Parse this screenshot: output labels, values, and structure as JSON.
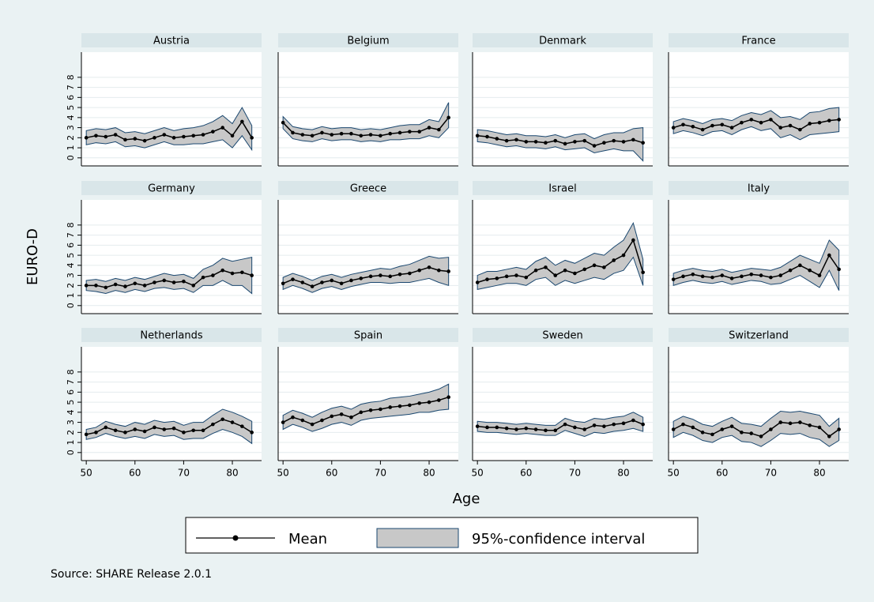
{
  "chart_data": {
    "type": "line",
    "y_label": "EURO-D",
    "x_label": "Age",
    "source": "Source: SHARE Release 2.0.1",
    "x": [
      50,
      52,
      54,
      56,
      58,
      60,
      62,
      64,
      66,
      68,
      70,
      72,
      74,
      76,
      78,
      80,
      82,
      84
    ],
    "xlim": [
      49,
      86
    ],
    "xticks": [
      50,
      60,
      70,
      80
    ],
    "ylim": [
      -0.8,
      10.5
    ],
    "yticks": [
      0,
      1,
      2,
      3,
      4,
      5,
      6,
      7,
      8
    ],
    "grid": true,
    "series": [
      {
        "name": "Mean",
        "color": "#000000"
      },
      {
        "name": "95%-confidence interval",
        "color": "#c8c8c8",
        "edge_color": "#1a476f"
      }
    ],
    "panels": [
      {
        "title": "Austria",
        "mean": [
          2,
          2.2,
          2.1,
          2.3,
          1.8,
          1.9,
          1.7,
          2.0,
          2.3,
          2.0,
          2.1,
          2.2,
          2.3,
          2.6,
          3.0,
          2.2,
          3.6,
          2.0
        ],
        "lower": [
          1.3,
          1.5,
          1.4,
          1.6,
          1.1,
          1.2,
          1.0,
          1.3,
          1.6,
          1.3,
          1.3,
          1.4,
          1.4,
          1.6,
          1.8,
          1.0,
          2.2,
          0.8
        ],
        "upper": [
          2.7,
          2.9,
          2.8,
          3.0,
          2.5,
          2.6,
          2.4,
          2.7,
          3.0,
          2.7,
          2.9,
          3.0,
          3.2,
          3.6,
          4.2,
          3.4,
          5.0,
          3.2
        ]
      },
      {
        "title": "Belgium",
        "mean": [
          3.5,
          2.5,
          2.3,
          2.2,
          2.5,
          2.3,
          2.4,
          2.4,
          2.2,
          2.3,
          2.2,
          2.4,
          2.5,
          2.6,
          2.6,
          3.0,
          2.8,
          4.0
        ],
        "lower": [
          2.9,
          1.9,
          1.7,
          1.6,
          1.9,
          1.7,
          1.8,
          1.8,
          1.6,
          1.7,
          1.6,
          1.8,
          1.8,
          1.9,
          1.9,
          2.2,
          2.0,
          3.0
        ],
        "upper": [
          4.1,
          3.1,
          2.9,
          2.8,
          3.1,
          2.9,
          3.0,
          3.0,
          2.8,
          2.9,
          2.8,
          3.0,
          3.2,
          3.3,
          3.3,
          3.8,
          3.6,
          5.5
        ]
      },
      {
        "title": "Denmark",
        "mean": [
          2.2,
          2.1,
          1.9,
          1.7,
          1.8,
          1.6,
          1.6,
          1.5,
          1.7,
          1.4,
          1.6,
          1.7,
          1.2,
          1.5,
          1.7,
          1.6,
          1.8,
          1.5
        ],
        "lower": [
          1.6,
          1.5,
          1.3,
          1.1,
          1.2,
          1.0,
          1.0,
          0.9,
          1.1,
          0.8,
          0.9,
          1.0,
          0.5,
          0.7,
          0.9,
          0.7,
          0.7,
          -0.3
        ],
        "upper": [
          2.8,
          2.7,
          2.5,
          2.3,
          2.4,
          2.2,
          2.2,
          2.1,
          2.3,
          2.0,
          2.3,
          2.4,
          1.9,
          2.3,
          2.5,
          2.5,
          2.9,
          3.0
        ]
      },
      {
        "title": "France",
        "mean": [
          3.0,
          3.3,
          3.1,
          2.8,
          3.2,
          3.3,
          3.0,
          3.5,
          3.8,
          3.5,
          3.8,
          3.0,
          3.2,
          2.8,
          3.4,
          3.5,
          3.7,
          3.8
        ],
        "lower": [
          2.4,
          2.7,
          2.5,
          2.2,
          2.6,
          2.7,
          2.3,
          2.8,
          3.1,
          2.7,
          2.9,
          2.0,
          2.3,
          1.8,
          2.3,
          2.4,
          2.5,
          2.6
        ],
        "upper": [
          3.6,
          3.9,
          3.7,
          3.4,
          3.8,
          3.9,
          3.7,
          4.2,
          4.5,
          4.3,
          4.7,
          4.0,
          4.1,
          3.8,
          4.5,
          4.6,
          4.9,
          5.0
        ]
      },
      {
        "title": "Germany",
        "mean": [
          2.0,
          2.0,
          1.8,
          2.1,
          1.9,
          2.2,
          2.0,
          2.3,
          2.5,
          2.3,
          2.4,
          2.0,
          2.8,
          3.0,
          3.5,
          3.2,
          3.3,
          3.0
        ],
        "lower": [
          1.5,
          1.4,
          1.2,
          1.5,
          1.3,
          1.6,
          1.4,
          1.7,
          1.8,
          1.6,
          1.7,
          1.3,
          2.0,
          2.0,
          2.5,
          2.0,
          2.0,
          1.2
        ],
        "upper": [
          2.5,
          2.6,
          2.4,
          2.7,
          2.5,
          2.8,
          2.6,
          2.9,
          3.2,
          3.0,
          3.1,
          2.7,
          3.6,
          4.0,
          4.7,
          4.4,
          4.6,
          4.8
        ]
      },
      {
        "title": "Greece",
        "mean": [
          2.2,
          2.6,
          2.3,
          1.9,
          2.3,
          2.5,
          2.2,
          2.5,
          2.7,
          2.9,
          3.0,
          2.9,
          3.1,
          3.2,
          3.5,
          3.8,
          3.5,
          3.4
        ],
        "lower": [
          1.6,
          2.0,
          1.7,
          1.3,
          1.7,
          1.9,
          1.6,
          1.9,
          2.1,
          2.3,
          2.3,
          2.2,
          2.3,
          2.3,
          2.5,
          2.7,
          2.3,
          2.0
        ],
        "upper": [
          2.8,
          3.2,
          2.9,
          2.5,
          2.9,
          3.1,
          2.8,
          3.1,
          3.3,
          3.5,
          3.7,
          3.6,
          3.9,
          4.1,
          4.5,
          4.9,
          4.7,
          4.8
        ]
      },
      {
        "title": "Israel",
        "mean": [
          2.3,
          2.6,
          2.7,
          2.9,
          3.0,
          2.8,
          3.5,
          3.8,
          3.0,
          3.5,
          3.2,
          3.6,
          4.0,
          3.8,
          4.5,
          5.0,
          6.5,
          3.3
        ],
        "lower": [
          1.6,
          1.8,
          2.0,
          2.2,
          2.2,
          2.0,
          2.6,
          2.8,
          2.0,
          2.5,
          2.2,
          2.5,
          2.8,
          2.6,
          3.2,
          3.5,
          4.8,
          2.0
        ],
        "upper": [
          3.0,
          3.4,
          3.4,
          3.6,
          3.8,
          3.6,
          4.4,
          4.8,
          4.0,
          4.5,
          4.2,
          4.7,
          5.2,
          5.0,
          5.8,
          6.5,
          8.2,
          4.6
        ]
      },
      {
        "title": "Italy",
        "mean": [
          2.6,
          2.9,
          3.1,
          2.9,
          2.8,
          3.0,
          2.7,
          2.9,
          3.1,
          3.0,
          2.8,
          3.0,
          3.5,
          4.0,
          3.5,
          3.0,
          5.0,
          3.6
        ],
        "lower": [
          2.0,
          2.3,
          2.5,
          2.3,
          2.2,
          2.4,
          2.1,
          2.3,
          2.5,
          2.4,
          2.1,
          2.2,
          2.6,
          3.0,
          2.4,
          1.8,
          3.5,
          1.5
        ],
        "upper": [
          3.2,
          3.5,
          3.7,
          3.5,
          3.4,
          3.6,
          3.3,
          3.5,
          3.7,
          3.6,
          3.5,
          3.8,
          4.4,
          5.0,
          4.6,
          4.2,
          6.5,
          5.5
        ]
      },
      {
        "title": "Netherlands",
        "mean": [
          1.8,
          2.0,
          2.5,
          2.2,
          2.0,
          2.3,
          2.1,
          2.5,
          2.3,
          2.4,
          2.0,
          2.2,
          2.2,
          2.8,
          3.3,
          3.0,
          2.6,
          2.0
        ],
        "lower": [
          1.3,
          1.5,
          1.9,
          1.6,
          1.4,
          1.6,
          1.4,
          1.8,
          1.6,
          1.7,
          1.3,
          1.4,
          1.4,
          1.9,
          2.3,
          2.0,
          1.6,
          0.9
        ],
        "upper": [
          2.3,
          2.5,
          3.1,
          2.8,
          2.6,
          3.0,
          2.8,
          3.2,
          3.0,
          3.1,
          2.7,
          3.0,
          3.0,
          3.7,
          4.3,
          4.0,
          3.6,
          3.1
        ]
      },
      {
        "title": "Spain",
        "mean": [
          3.0,
          3.5,
          3.2,
          2.8,
          3.2,
          3.6,
          3.8,
          3.5,
          4.0,
          4.2,
          4.3,
          4.5,
          4.6,
          4.7,
          4.9,
          5.0,
          5.2,
          5.5
        ],
        "lower": [
          2.3,
          2.8,
          2.5,
          2.1,
          2.4,
          2.8,
          3.0,
          2.7,
          3.2,
          3.4,
          3.5,
          3.6,
          3.7,
          3.8,
          4.0,
          4.0,
          4.2,
          4.3
        ],
        "upper": [
          3.7,
          4.2,
          3.9,
          3.5,
          4.0,
          4.4,
          4.6,
          4.3,
          4.8,
          5.0,
          5.1,
          5.4,
          5.5,
          5.6,
          5.8,
          6.0,
          6.3,
          6.8
        ]
      },
      {
        "title": "Sweden",
        "mean": [
          2.6,
          2.5,
          2.5,
          2.4,
          2.3,
          2.4,
          2.3,
          2.2,
          2.2,
          2.8,
          2.5,
          2.3,
          2.7,
          2.6,
          2.8,
          2.9,
          3.2,
          2.8
        ],
        "lower": [
          2.1,
          2.0,
          2.0,
          1.9,
          1.8,
          1.9,
          1.8,
          1.7,
          1.7,
          2.2,
          1.9,
          1.6,
          2.0,
          1.9,
          2.1,
          2.2,
          2.4,
          2.1
        ],
        "upper": [
          3.1,
          3.0,
          3.0,
          2.9,
          2.8,
          2.9,
          2.8,
          2.7,
          2.7,
          3.4,
          3.1,
          3.0,
          3.4,
          3.3,
          3.5,
          3.6,
          4.0,
          3.5
        ]
      },
      {
        "title": "Switzerland",
        "mean": [
          2.3,
          2.8,
          2.5,
          2.0,
          1.8,
          2.3,
          2.6,
          2.0,
          1.9,
          1.6,
          2.3,
          3.0,
          2.9,
          3.0,
          2.7,
          2.5,
          1.6,
          2.3
        ],
        "lower": [
          1.5,
          2.0,
          1.7,
          1.2,
          1.0,
          1.5,
          1.7,
          1.1,
          1.0,
          0.6,
          1.2,
          1.9,
          1.8,
          1.9,
          1.5,
          1.3,
          0.6,
          1.2
        ],
        "upper": [
          3.1,
          3.6,
          3.3,
          2.8,
          2.6,
          3.1,
          3.5,
          2.9,
          2.8,
          2.6,
          3.4,
          4.1,
          4.0,
          4.1,
          3.9,
          3.7,
          2.6,
          3.4
        ]
      }
    ]
  }
}
